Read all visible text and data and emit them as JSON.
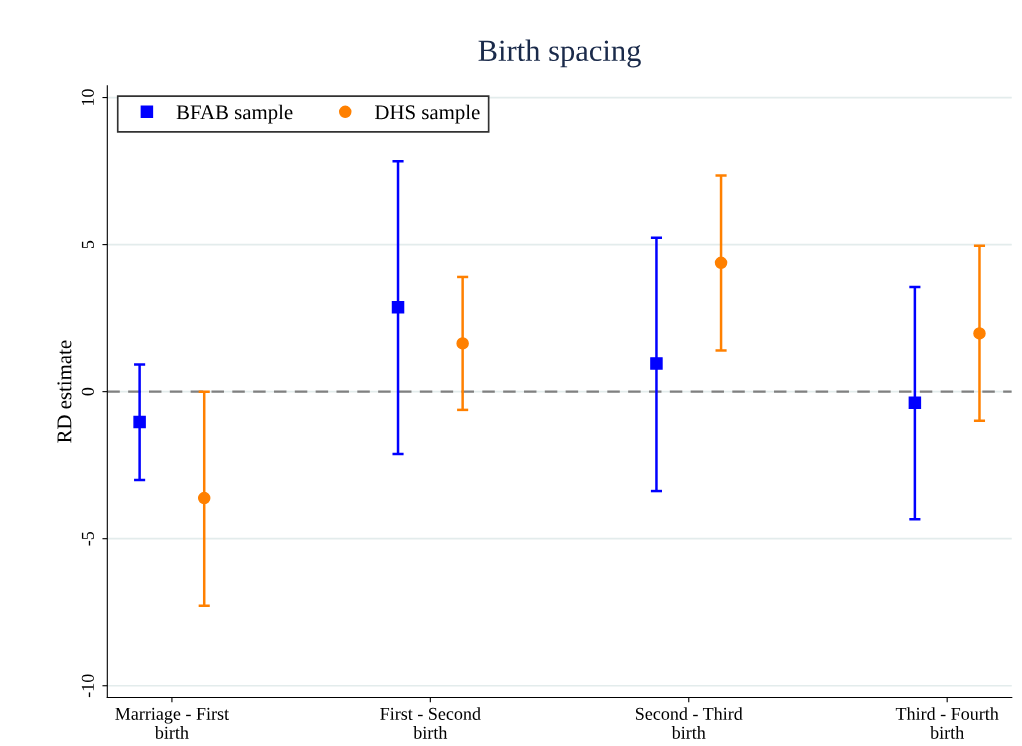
{
  "chart_data": {
    "type": "scatter",
    "title": "Birth spacing",
    "ylabel": "RD estimate",
    "categories": [
      "Marriage - First\nbirth",
      "First - Second\nbirth",
      "Second - Third\nbirth",
      "Third - Fourth\nbirth"
    ],
    "series": [
      {
        "name": "BFAB sample",
        "color": "#0000ff",
        "marker": "square",
        "values": [
          -1.03,
          2.87,
          0.96,
          -0.38
        ],
        "errors": [
          [
            -3.0,
            0.92
          ],
          [
            -2.12,
            7.83
          ],
          [
            -3.38,
            5.23
          ],
          [
            -4.34,
            3.56
          ]
        ]
      },
      {
        "name": "DHS sample",
        "color": "#ff8000",
        "marker": "circle",
        "values": [
          -3.62,
          1.64,
          4.38,
          1.98
        ],
        "errors": [
          [
            -7.28,
            0.0
          ],
          [
            -0.62,
            3.9
          ],
          [
            1.4,
            7.35
          ],
          [
            -0.99,
            4.96
          ]
        ]
      }
    ],
    "ylim": [
      -10.4,
      10.4
    ],
    "yticks": [
      -10,
      -5,
      0,
      5,
      10
    ],
    "grid": "y",
    "legend": "top left",
    "ref_lines": [
      {
        "axis": "y",
        "value": 0,
        "color": "#808080",
        "line_style": "dashed"
      }
    ]
  }
}
